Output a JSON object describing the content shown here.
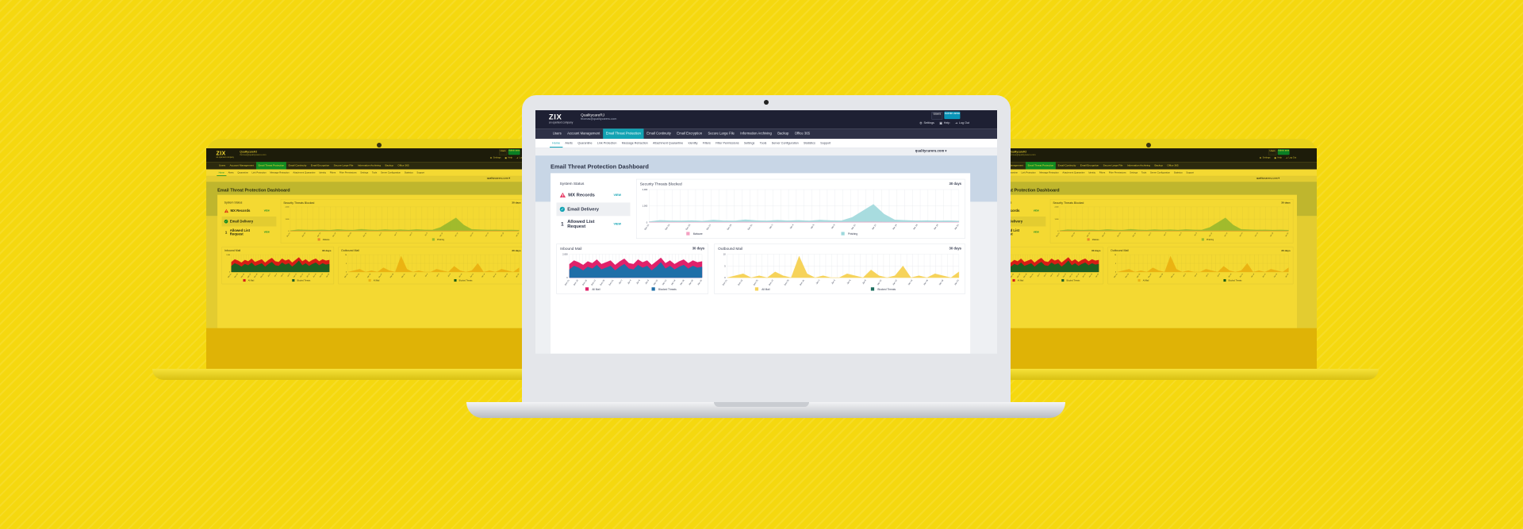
{
  "app": {
    "logo": "ZIX",
    "logo_sub": "an opentext company",
    "account_name": "QualitycareRJ",
    "account_email": "thomas@qualitycareru.com",
    "user_btn": "Users",
    "admin_btn": "Admin area",
    "settings": "Settings",
    "help": "Help",
    "logout": "Log Out"
  },
  "main_nav": [
    {
      "label": "Users"
    },
    {
      "label": "Account Management"
    },
    {
      "label": "Email Threat Protection",
      "active": true
    },
    {
      "label": "Email Continuity"
    },
    {
      "label": "Email Encryption"
    },
    {
      "label": "Secure Large File"
    },
    {
      "label": "Information Archiving"
    },
    {
      "label": "Backup"
    },
    {
      "label": "Office 365"
    }
  ],
  "sub_nav": [
    {
      "label": "Home",
      "active": true
    },
    {
      "label": "Alerts"
    },
    {
      "label": "Quarantine"
    },
    {
      "label": "Link Protection"
    },
    {
      "label": "Message Retraction"
    },
    {
      "label": "Attachment Quarantine"
    },
    {
      "label": "Identity"
    },
    {
      "label": "Filters"
    },
    {
      "label": "Filter Permissions"
    },
    {
      "label": "Settings"
    },
    {
      "label": "Tools"
    },
    {
      "label": "Server Configuration"
    },
    {
      "label": "Statistics"
    },
    {
      "label": "Support"
    }
  ],
  "domain_selector": "qualitycareru.com ▾",
  "dashboard": {
    "title": "Email Threat Protection Dashboard",
    "system_status": {
      "title": "System Status",
      "items": [
        {
          "label": "MX Records",
          "icon": "warning-icon",
          "link": "VIEW"
        },
        {
          "label": "Email Delivery",
          "icon": "check-icon",
          "link": ""
        },
        {
          "label": "Allowed List Request",
          "icon": "info-icon",
          "count": "1",
          "link": "VIEW"
        }
      ]
    },
    "threats": {
      "title": "Security Threats Blocked",
      "range": "30 days",
      "yticks": [
        "2,000",
        "1,000",
        "0"
      ],
      "xlabels": [
        "Dec 21",
        "Dec 23",
        "Dec 25",
        "Dec 27",
        "Dec 29",
        "Dec 31",
        "Jan 2",
        "Jan 4",
        "Jan 6",
        "Jan 8",
        "Jan 10",
        "Jan 12",
        "Jan 14",
        "Jan 16",
        "Jan 18",
        "Jan 20"
      ],
      "legend": [
        {
          "label": "Malware",
          "color": "#f4a0c2"
        },
        {
          "label": "Phishing",
          "color": "#9ed8dc"
        }
      ]
    },
    "inbound": {
      "title": "Inbound Mail",
      "range": "30 days",
      "yticks": [
        "2,000",
        "0"
      ],
      "xlabels": [
        "Dec 21",
        "Dec 23",
        "Dec 25",
        "Dec 27",
        "Dec 29",
        "Dec 31",
        "Jan 2",
        "Jan 4",
        "Jan 6",
        "Jan 8",
        "Jan 10",
        "Jan 12",
        "Jan 14",
        "Jan 16",
        "Jan 18",
        "Jan 20"
      ],
      "legend": [
        {
          "label": "All Mail",
          "color": "#e0226a"
        },
        {
          "label": "Blocked Threats",
          "color": "#1f6fa8"
        }
      ]
    },
    "outbound": {
      "title": "Outbound Mail",
      "range": "30 days",
      "yticks": [
        "10",
        "5",
        "0"
      ],
      "xlabels": [
        "Dec 21",
        "Dec 23",
        "Dec 25",
        "Dec 27",
        "Dec 29",
        "Dec 31",
        "Jan 2",
        "Jan 4",
        "Jan 6",
        "Jan 8",
        "Jan 10",
        "Jan 12",
        "Jan 14",
        "Jan 16",
        "Jan 18",
        "Jan 20"
      ],
      "legend": [
        {
          "label": "All Mail",
          "color": "#f6d35a"
        },
        {
          "label": "Blocked Threats",
          "color": "#1d6e5f"
        }
      ]
    }
  }
}
